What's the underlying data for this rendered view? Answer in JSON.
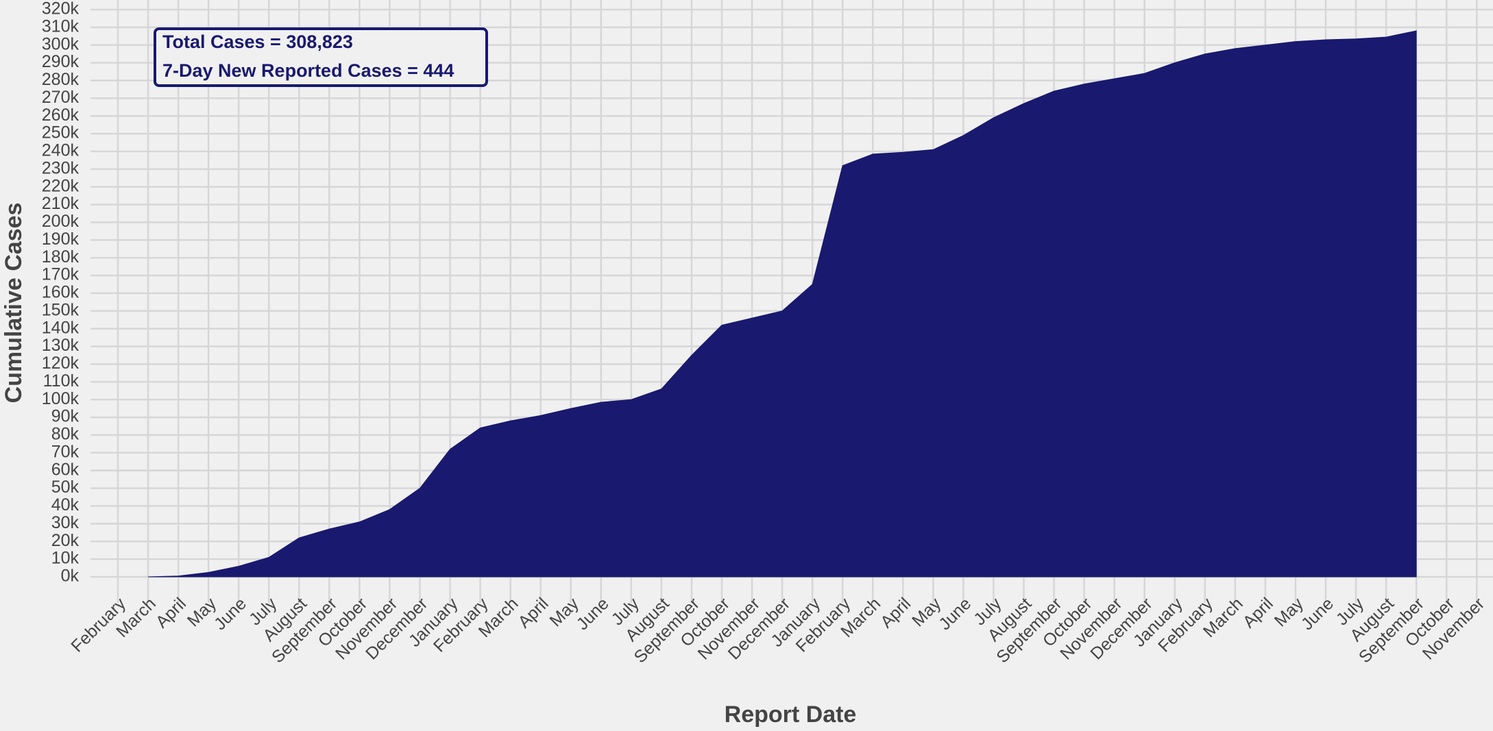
{
  "chart_data": {
    "type": "area",
    "xlabel": "Report Date",
    "ylabel": "Cumulative Cases",
    "annotations": [
      "Total Cases = 308,823",
      "7-Day New Reported Cases = 444"
    ],
    "categories": [
      "February",
      "March",
      "April",
      "May",
      "June",
      "July",
      "August",
      "September",
      "October",
      "November",
      "December",
      "January",
      "February",
      "March",
      "April",
      "May",
      "June",
      "July",
      "August",
      "September",
      "October",
      "November",
      "December",
      "January",
      "February",
      "March",
      "April",
      "May",
      "June",
      "July",
      "August",
      "September",
      "October",
      "November",
      "December",
      "January",
      "February",
      "March",
      "April",
      "May",
      "June",
      "July",
      "August",
      "September",
      "October",
      "November"
    ],
    "series": [
      {
        "name": "Cumulative Cases",
        "color": "#191970",
        "values": [
          null,
          0,
          500,
          2500,
          6000,
          11000,
          22000,
          27000,
          31000,
          38000,
          50000,
          72000,
          84000,
          88000,
          91000,
          95000,
          98500,
          100000,
          106000,
          125000,
          142000,
          146000,
          150000,
          165000,
          232000,
          238500,
          239500,
          241000,
          249000,
          259000,
          267000,
          274000,
          278000,
          281000,
          284000,
          290000,
          295000,
          298000,
          300000,
          302000,
          303000,
          303500,
          304500,
          308000,
          null,
          null
        ]
      }
    ],
    "ylim": [
      0,
      320000
    ],
    "yticks": [
      {
        "value": 0,
        "label": "0k"
      },
      {
        "value": 10000,
        "label": "10k"
      },
      {
        "value": 20000,
        "label": "20k"
      },
      {
        "value": 30000,
        "label": "30k"
      },
      {
        "value": 40000,
        "label": "40k"
      },
      {
        "value": 50000,
        "label": "50k"
      },
      {
        "value": 60000,
        "label": "60k"
      },
      {
        "value": 70000,
        "label": "70k"
      },
      {
        "value": 80000,
        "label": "80k"
      },
      {
        "value": 90000,
        "label": "90k"
      },
      {
        "value": 100000,
        "label": "100k"
      },
      {
        "value": 110000,
        "label": "110k"
      },
      {
        "value": 120000,
        "label": "120k"
      },
      {
        "value": 130000,
        "label": "130k"
      },
      {
        "value": 140000,
        "label": "140k"
      },
      {
        "value": 150000,
        "label": "150k"
      },
      {
        "value": 160000,
        "label": "160k"
      },
      {
        "value": 170000,
        "label": "170k"
      },
      {
        "value": 180000,
        "label": "180k"
      },
      {
        "value": 190000,
        "label": "190k"
      },
      {
        "value": 200000,
        "label": "200k"
      },
      {
        "value": 210000,
        "label": "210k"
      },
      {
        "value": 220000,
        "label": "220k"
      },
      {
        "value": 230000,
        "label": "230k"
      },
      {
        "value": 240000,
        "label": "240k"
      },
      {
        "value": 250000,
        "label": "250k"
      },
      {
        "value": 260000,
        "label": "260k"
      },
      {
        "value": 270000,
        "label": "270k"
      },
      {
        "value": 280000,
        "label": "280k"
      },
      {
        "value": 290000,
        "label": "290k"
      },
      {
        "value": 300000,
        "label": "300k"
      },
      {
        "value": 310000,
        "label": "310k"
      },
      {
        "value": 320000,
        "label": "320k"
      }
    ],
    "grid": true
  }
}
